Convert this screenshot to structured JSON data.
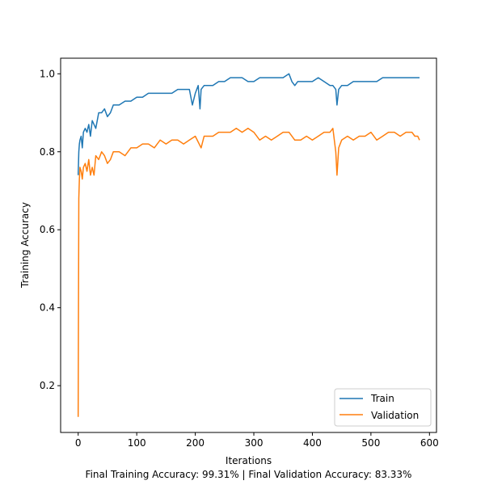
{
  "chart_data": {
    "type": "line",
    "xlabel": "Iterations",
    "ylabel": "Training Accuracy",
    "caption": "Final Training Accuracy: 99.31% | Final Validation Accuracy: 83.33%",
    "xlim": [
      -30,
      612
    ],
    "ylim": [
      0.08,
      1.04
    ],
    "xticks": [
      0,
      100,
      200,
      300,
      400,
      500,
      600
    ],
    "yticks": [
      0.2,
      0.4,
      0.6,
      0.8,
      1.0
    ],
    "xtick_labels": [
      "0",
      "100",
      "200",
      "300",
      "400",
      "500",
      "600"
    ],
    "ytick_labels": [
      "0.2",
      "0.4",
      "0.6",
      "0.8",
      "1.0"
    ],
    "grid": false,
    "legend_position": "bottom-right",
    "series": [
      {
        "name": "Train",
        "color": "#1f77b4",
        "x": [
          0,
          1,
          2,
          3,
          5,
          7,
          9,
          12,
          15,
          18,
          21,
          24,
          27,
          30,
          35,
          40,
          45,
          50,
          55,
          60,
          70,
          80,
          90,
          100,
          110,
          120,
          130,
          140,
          150,
          160,
          170,
          180,
          190,
          195,
          200,
          205,
          208,
          210,
          215,
          220,
          230,
          240,
          250,
          260,
          270,
          280,
          290,
          300,
          310,
          320,
          330,
          340,
          350,
          360,
          365,
          370,
          375,
          380,
          390,
          400,
          410,
          420,
          430,
          435,
          440,
          442,
          445,
          450,
          460,
          470,
          480,
          490,
          500,
          510,
          520,
          530,
          540,
          550,
          560,
          570,
          575,
          580,
          583
        ],
        "y": [
          0.74,
          0.8,
          0.82,
          0.83,
          0.84,
          0.81,
          0.85,
          0.86,
          0.85,
          0.87,
          0.84,
          0.88,
          0.87,
          0.86,
          0.9,
          0.9,
          0.91,
          0.89,
          0.9,
          0.92,
          0.92,
          0.93,
          0.93,
          0.94,
          0.94,
          0.95,
          0.95,
          0.95,
          0.95,
          0.95,
          0.96,
          0.96,
          0.96,
          0.92,
          0.95,
          0.97,
          0.91,
          0.96,
          0.97,
          0.97,
          0.97,
          0.98,
          0.98,
          0.99,
          0.99,
          0.99,
          0.98,
          0.98,
          0.99,
          0.99,
          0.99,
          0.99,
          0.99,
          1.0,
          0.98,
          0.97,
          0.98,
          0.98,
          0.98,
          0.98,
          0.99,
          0.98,
          0.97,
          0.97,
          0.96,
          0.92,
          0.96,
          0.97,
          0.97,
          0.98,
          0.98,
          0.98,
          0.98,
          0.98,
          0.99,
          0.99,
          0.99,
          0.99,
          0.99,
          0.99,
          0.99,
          0.99,
          0.99
        ]
      },
      {
        "name": "Validation",
        "color": "#ff7f0e",
        "x": [
          0,
          1,
          2,
          3,
          5,
          7,
          9,
          12,
          15,
          18,
          21,
          24,
          27,
          30,
          35,
          40,
          45,
          50,
          55,
          60,
          70,
          80,
          90,
          100,
          110,
          120,
          130,
          140,
          150,
          160,
          170,
          180,
          190,
          200,
          210,
          215,
          220,
          230,
          240,
          250,
          260,
          270,
          280,
          290,
          300,
          310,
          320,
          330,
          340,
          350,
          360,
          370,
          380,
          390,
          400,
          410,
          420,
          430,
          435,
          440,
          442,
          445,
          450,
          460,
          470,
          480,
          490,
          500,
          510,
          520,
          530,
          540,
          550,
          560,
          570,
          575,
          580,
          583
        ],
        "y": [
          0.12,
          0.68,
          0.73,
          0.76,
          0.75,
          0.73,
          0.76,
          0.77,
          0.75,
          0.78,
          0.74,
          0.76,
          0.74,
          0.79,
          0.78,
          0.8,
          0.79,
          0.77,
          0.78,
          0.8,
          0.8,
          0.79,
          0.81,
          0.81,
          0.82,
          0.82,
          0.81,
          0.83,
          0.82,
          0.83,
          0.83,
          0.82,
          0.83,
          0.84,
          0.81,
          0.84,
          0.84,
          0.84,
          0.85,
          0.85,
          0.85,
          0.86,
          0.85,
          0.86,
          0.85,
          0.83,
          0.84,
          0.83,
          0.84,
          0.85,
          0.85,
          0.83,
          0.83,
          0.84,
          0.83,
          0.84,
          0.85,
          0.85,
          0.86,
          0.8,
          0.74,
          0.81,
          0.83,
          0.84,
          0.83,
          0.84,
          0.84,
          0.85,
          0.83,
          0.84,
          0.85,
          0.85,
          0.84,
          0.85,
          0.85,
          0.84,
          0.84,
          0.83
        ]
      }
    ]
  }
}
